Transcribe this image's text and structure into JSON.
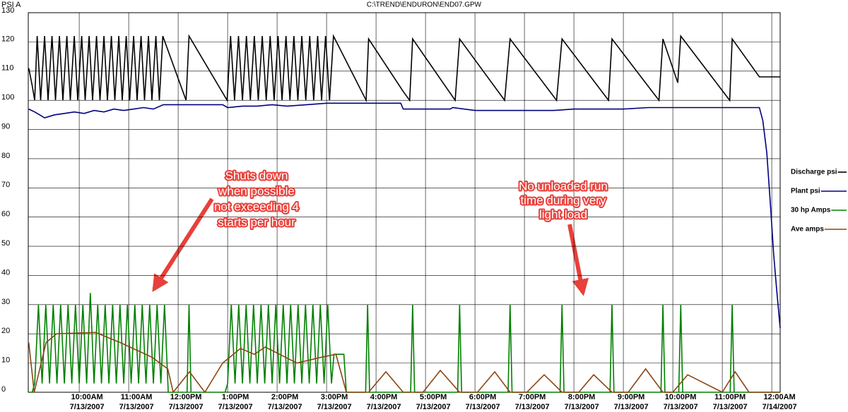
{
  "chart_data": {
    "type": "line",
    "title": "C:\\TREND\\ENDURON\\END07.GPW",
    "ylabel": "PSI A",
    "xlim": [
      8.97,
      24.17
    ],
    "ylim": [
      0,
      130
    ],
    "yticks": [
      0,
      10,
      20,
      30,
      40,
      50,
      60,
      70,
      80,
      90,
      100,
      110,
      120,
      130
    ],
    "xticks": [
      {
        "value": 10,
        "label": "10:00AM",
        "date": "7/13/2007"
      },
      {
        "value": 11,
        "label": "11:00AM",
        "date": "7/13/2007"
      },
      {
        "value": 12,
        "label": "12:00PM",
        "date": "7/13/2007"
      },
      {
        "value": 13,
        "label": "1:00PM",
        "date": "7/13/2007"
      },
      {
        "value": 14,
        "label": "2:00PM",
        "date": "7/13/2007"
      },
      {
        "value": 15,
        "label": "3:00PM",
        "date": "7/13/2007"
      },
      {
        "value": 16,
        "label": "4:00PM",
        "date": "7/13/2007"
      },
      {
        "value": 17,
        "label": "5:00PM",
        "date": "7/13/2007"
      },
      {
        "value": 18,
        "label": "6:00PM",
        "date": "7/13/2007"
      },
      {
        "value": 19,
        "label": "7:00PM",
        "date": "7/13/2007"
      },
      {
        "value": 20,
        "label": "8:00PM",
        "date": "7/13/2007"
      },
      {
        "value": 21,
        "label": "9:00PM",
        "date": "7/13/2007"
      },
      {
        "value": 22,
        "label": "10:00PM",
        "date": "7/13/2007"
      },
      {
        "value": 23,
        "label": "11:00PM",
        "date": "7/13/2007"
      },
      {
        "value": 24,
        "label": "12:00AM",
        "date": "7/14/2007"
      }
    ],
    "grid": true,
    "legend": "right",
    "series": [
      {
        "name": "Discharge psi",
        "color": "#000000",
        "x": [
          8.98,
          9.05,
          9.1,
          9.15,
          9.22,
          9.3,
          9.37,
          9.45,
          9.52,
          9.6,
          9.67,
          9.75,
          9.82,
          9.9,
          9.97,
          10.05,
          10.12,
          10.2,
          10.27,
          10.35,
          10.42,
          10.5,
          10.57,
          10.65,
          10.72,
          10.8,
          10.87,
          10.95,
          11.02,
          11.1,
          11.17,
          11.25,
          11.32,
          11.4,
          11.47,
          11.55,
          11.62,
          11.69,
          12.16,
          12.22,
          12.99,
          13.06,
          13.14,
          13.22,
          13.3,
          13.38,
          13.46,
          13.54,
          13.62,
          13.7,
          13.78,
          13.86,
          13.94,
          14.02,
          14.1,
          14.18,
          14.26,
          14.34,
          14.42,
          14.5,
          14.58,
          14.66,
          14.74,
          14.82,
          14.9,
          14.98,
          15.06,
          15.14,
          15.8,
          15.85,
          16.55,
          16.68,
          16.74,
          17.6,
          17.69,
          18.6,
          18.71,
          19.65,
          19.76,
          20.7,
          20.77,
          21.72,
          21.8,
          22.1,
          22.16,
          23.15,
          23.2,
          23.75,
          24.17
        ],
        "values": [
          111,
          105,
          100,
          122,
          100,
          122,
          100,
          122,
          100,
          122,
          100,
          122,
          100,
          122,
          100,
          122,
          100,
          122,
          100,
          122,
          100,
          122,
          100,
          122,
          100,
          122,
          100,
          122,
          100,
          122,
          100,
          122,
          100,
          122,
          100,
          122,
          100,
          122,
          100,
          122,
          100,
          122,
          100,
          122,
          100,
          122,
          100,
          122,
          100,
          122,
          100,
          122,
          100,
          122,
          100,
          122,
          100,
          122,
          100,
          122,
          100,
          122,
          100,
          122,
          100,
          122,
          100,
          122,
          100,
          121,
          103,
          100,
          121,
          100,
          121,
          100,
          121,
          100,
          121,
          100,
          121,
          100,
          121,
          106,
          122,
          100,
          121,
          108,
          108
        ]
      },
      {
        "name": "Plant psi",
        "color": "#000080",
        "x": [
          8.98,
          9.1,
          9.2,
          9.3,
          9.5,
          9.7,
          9.9,
          10.1,
          10.3,
          10.5,
          10.7,
          10.9,
          11.1,
          11.3,
          11.5,
          11.7,
          12.5,
          12.9,
          13.0,
          13.3,
          13.6,
          13.9,
          14.2,
          14.6,
          15.0,
          15.5,
          16.0,
          16.5,
          16.55,
          17.5,
          17.55,
          18.0,
          19.0,
          19.6,
          20.0,
          21.0,
          21.5,
          22.0,
          23.0,
          23.75,
          23.82,
          23.9,
          23.97,
          24.04,
          24.1,
          24.17
        ],
        "values": [
          97,
          96,
          95,
          94,
          95,
          95.5,
          96,
          95.5,
          96.5,
          96,
          97,
          96.5,
          97,
          97.5,
          97,
          98.5,
          98.5,
          98.5,
          97.5,
          98,
          98,
          98.5,
          98,
          98.5,
          99,
          99,
          99,
          99,
          97,
          97,
          97.5,
          96.5,
          96.5,
          96.5,
          97,
          97,
          97.5,
          97.5,
          97.5,
          97.5,
          93,
          82,
          65,
          47,
          35,
          22
        ]
      },
      {
        "name": "30 hp Amps",
        "color": "#008000",
        "x": [
          8.98,
          9.05,
          9.1,
          9.175,
          9.25,
          9.325,
          9.4,
          9.475,
          9.55,
          9.625,
          9.7,
          9.775,
          9.85,
          9.925,
          10,
          10.075,
          10.15,
          10.225,
          10.3,
          10.375,
          10.45,
          10.525,
          10.6,
          10.675,
          10.75,
          10.825,
          10.9,
          10.975,
          11.05,
          11.125,
          11.2,
          11.275,
          11.35,
          11.425,
          11.5,
          11.575,
          11.65,
          11.725,
          11.8,
          12.18,
          12.22,
          12.26,
          12.95,
          13,
          13.075,
          13.15,
          13.225,
          13.3,
          13.375,
          13.45,
          13.525,
          13.6,
          13.675,
          13.75,
          13.825,
          13.9,
          13.975,
          14.05,
          14.125,
          14.2,
          14.275,
          14.35,
          14.425,
          14.5,
          14.575,
          14.65,
          14.725,
          14.8,
          14.875,
          14.95,
          15.025,
          15.1,
          15.15,
          15.35,
          15.4,
          15.79,
          15.83,
          15.87,
          16.7,
          16.74,
          16.78,
          17.65,
          17.69,
          17.73,
          18.67,
          18.71,
          18.75,
          19.72,
          19.76,
          19.8,
          20.73,
          20.77,
          20.81,
          21.76,
          21.8,
          21.84,
          22.12,
          22.16,
          22.2,
          23.16,
          23.2,
          23.24,
          24.17
        ],
        "values": [
          0,
          0,
          3,
          30,
          3,
          30,
          3,
          30,
          3,
          30,
          3,
          30,
          3,
          30,
          3,
          30,
          3,
          34,
          3,
          30,
          3,
          30,
          3,
          30,
          3,
          30,
          3,
          30,
          3,
          30,
          3,
          30,
          3,
          30,
          3,
          30,
          3,
          30,
          0,
          0,
          30,
          0,
          0,
          3,
          30,
          3,
          30,
          3,
          30,
          3,
          30,
          3,
          30,
          3,
          30,
          3,
          30,
          3,
          30,
          3,
          30,
          3,
          30,
          3,
          30,
          3,
          30,
          3,
          30,
          3,
          30,
          3,
          13,
          13,
          0,
          0,
          30,
          0,
          0,
          30,
          0,
          0,
          30,
          0,
          0,
          30,
          0,
          0,
          30,
          0,
          0,
          30,
          0,
          0,
          30,
          0,
          0,
          30,
          0,
          0,
          30,
          0,
          0
        ]
      },
      {
        "name": "Ave amps",
        "color": "#8b4513",
        "x": [
          8.98,
          9.09,
          9.33,
          9.54,
          10.33,
          10.83,
          11.47,
          11.79,
          11.9,
          12.23,
          12.54,
          12.9,
          13.26,
          13.54,
          13.76,
          14.4,
          14.9,
          15.19,
          15.4,
          15.85,
          16.2,
          16.55,
          16.95,
          17.3,
          17.69,
          18.05,
          18.4,
          18.71,
          19.05,
          19.4,
          19.76,
          20.1,
          20.4,
          20.77,
          21.1,
          21.45,
          21.8,
          22.0,
          22.3,
          23.0,
          23.26,
          23.54,
          24.17
        ],
        "values": [
          17,
          0,
          17,
          20,
          20.5,
          17,
          12,
          8,
          0,
          7,
          0,
          10,
          15,
          13,
          15.5,
          10,
          12,
          13,
          0,
          0,
          7,
          0,
          0,
          7.5,
          0,
          0,
          7,
          0,
          0,
          6,
          0,
          0,
          6,
          0,
          0,
          8,
          0,
          0,
          6,
          0,
          7,
          0,
          0
        ]
      }
    ],
    "annotations": [
      {
        "lines": [
          "Shuts down",
          "when possible",
          "not exceeding 4",
          "starts per hour"
        ]
      },
      {
        "lines": [
          "No unloaded run",
          "time during very",
          "light load"
        ]
      }
    ]
  }
}
